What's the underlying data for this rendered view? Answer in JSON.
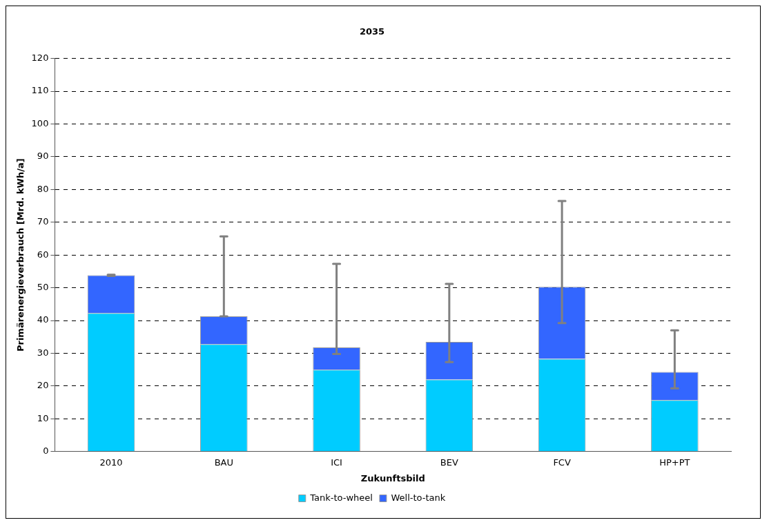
{
  "chart_data": {
    "type": "bar",
    "title": "2035",
    "xlabel": "Zukunftsbild",
    "ylabel": "Primärenergieverbrauch [Mrd. kWh/a]",
    "categories": [
      "2010",
      "BAU",
      "ICI",
      "BEV",
      "FCV",
      "HP+PT"
    ],
    "stacked": true,
    "series": [
      {
        "name": "Tank-to-wheel",
        "color": "#00ccff",
        "values": [
          42.3,
          32.8,
          25.0,
          22.0,
          28.3,
          15.7
        ]
      },
      {
        "name": "Well-to-tank",
        "color": "#3366ff",
        "values": [
          11.5,
          8.5,
          6.8,
          11.5,
          22.0,
          8.6
        ],
        "errors": [
          [
            53.6,
            54.0
          ],
          [
            41.3,
            65.7
          ],
          [
            29.8,
            57.3
          ],
          [
            27.3,
            51.2
          ],
          [
            39.2,
            76.5
          ],
          [
            19.3,
            37.0
          ]
        ]
      }
    ],
    "ylim": [
      0,
      120
    ],
    "yticks": [
      0,
      10,
      20,
      30,
      40,
      50,
      60,
      70,
      80,
      90,
      100,
      110,
      120
    ],
    "grid": "y",
    "legend": "bottom"
  }
}
